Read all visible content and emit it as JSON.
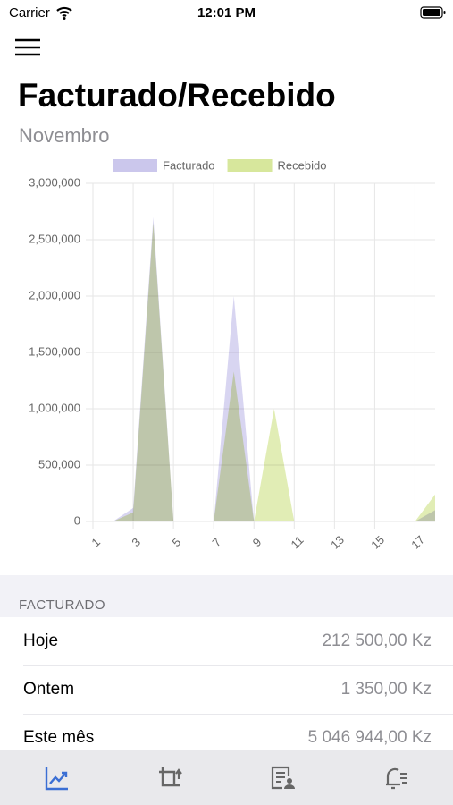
{
  "status_bar": {
    "carrier": "Carrier",
    "time": "12:01 PM"
  },
  "header": {
    "title": "Facturado/Recebido",
    "subtitle": "Novembro"
  },
  "chart_data": {
    "type": "area",
    "x": [
      1,
      2,
      3,
      4,
      5,
      6,
      7,
      8,
      9,
      10,
      11,
      12,
      13,
      14,
      15,
      16,
      17,
      18
    ],
    "series": [
      {
        "name": "Facturado",
        "color": "#cbc7ec",
        "values": [
          0,
          0,
          120000,
          2700000,
          0,
          0,
          0,
          2000000,
          0,
          0,
          0,
          0,
          0,
          0,
          0,
          0,
          0,
          100000
        ]
      },
      {
        "name": "Recebido",
        "color": "#d7e79c",
        "values": [
          0,
          0,
          80000,
          2650000,
          0,
          0,
          0,
          1330000,
          0,
          1000000,
          0,
          0,
          0,
          0,
          0,
          0,
          0,
          240000
        ]
      }
    ],
    "xlim": [
      1,
      18
    ],
    "xticks": [
      1,
      3,
      5,
      7,
      9,
      11,
      13,
      15,
      17
    ],
    "ylim": [
      0,
      3000000
    ],
    "yticks": [
      0,
      {
        "value": 500000,
        "label": "500,000"
      },
      {
        "value": 1000000,
        "label": "1,000,000"
      },
      {
        "value": 1500000,
        "label": "1,500,000"
      },
      {
        "value": 2000000,
        "label": "2,000,000"
      },
      {
        "value": 2500000,
        "label": "2,500,000"
      },
      {
        "value": 3000000,
        "label": "3,000,000"
      }
    ],
    "grid": true,
    "legend": "top"
  },
  "section": {
    "title": "FACTURADO",
    "rows": [
      [
        "Hoje",
        "212 500,00 Kz"
      ],
      [
        "Ontem",
        "1 350,00 Kz"
      ],
      [
        "Este mês",
        "5 046 944,00 Kz"
      ]
    ]
  }
}
